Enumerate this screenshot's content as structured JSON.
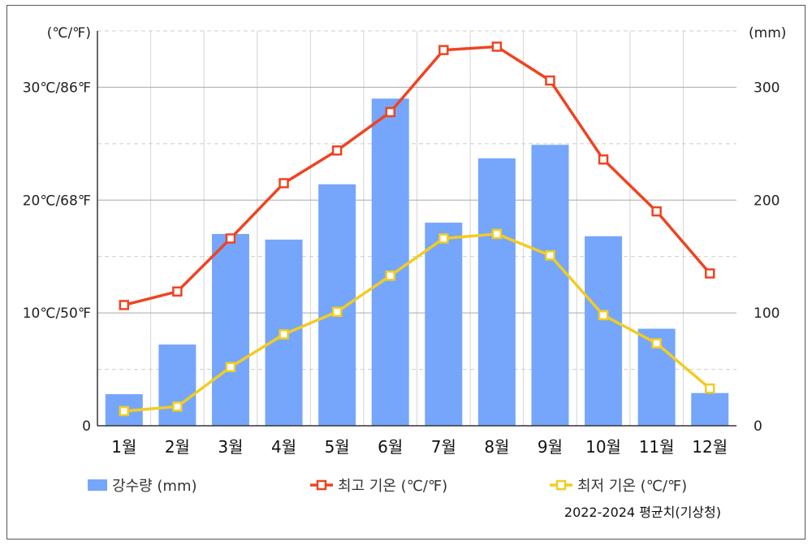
{
  "chart_data": {
    "type": "bar+line",
    "categories": [
      "1월",
      "2월",
      "3월",
      "4월",
      "5월",
      "6월",
      "7월",
      "8월",
      "9월",
      "10월",
      "11월",
      "12월"
    ],
    "left_axis": {
      "unit_label": "(℃/℉)",
      "ylim": [
        0,
        35
      ],
      "ticks": [
        {
          "value": 0,
          "label": "0"
        },
        {
          "value": 10,
          "label": "10℃/50℉"
        },
        {
          "value": 20,
          "label": "20℃/68℉"
        },
        {
          "value": 30,
          "label": "30℃/86℉"
        }
      ]
    },
    "right_axis": {
      "unit_label": "(mm)",
      "ylim": [
        0,
        350
      ],
      "ticks": [
        {
          "value": 0,
          "label": "0"
        },
        {
          "value": 100,
          "label": "100"
        },
        {
          "value": 200,
          "label": "200"
        },
        {
          "value": 300,
          "label": "300"
        }
      ]
    },
    "series": [
      {
        "name": "강수량 (mm)",
        "kind": "bar",
        "axis": "right",
        "color": "#75a6fb",
        "values": [
          28,
          72,
          170,
          165,
          214,
          290,
          180,
          237,
          249,
          168,
          86,
          29
        ]
      },
      {
        "name": "최고 기온 (℃/℉)",
        "kind": "line",
        "axis": "left",
        "color": "#ee4422",
        "values": [
          10.7,
          11.9,
          16.6,
          21.5,
          24.4,
          27.8,
          33.3,
          33.6,
          30.6,
          23.6,
          19.0,
          13.5
        ]
      },
      {
        "name": "최저 기온 (℃/℉)",
        "kind": "line",
        "axis": "left",
        "color": "#f2cc22",
        "values": [
          1.3,
          1.7,
          5.2,
          8.1,
          10.1,
          13.3,
          16.6,
          17.0,
          15.1,
          9.8,
          7.3,
          3.3
        ]
      }
    ],
    "grid": true,
    "legend_position": "bottom",
    "source_note": "2022-2024 평균치(기상청)"
  }
}
